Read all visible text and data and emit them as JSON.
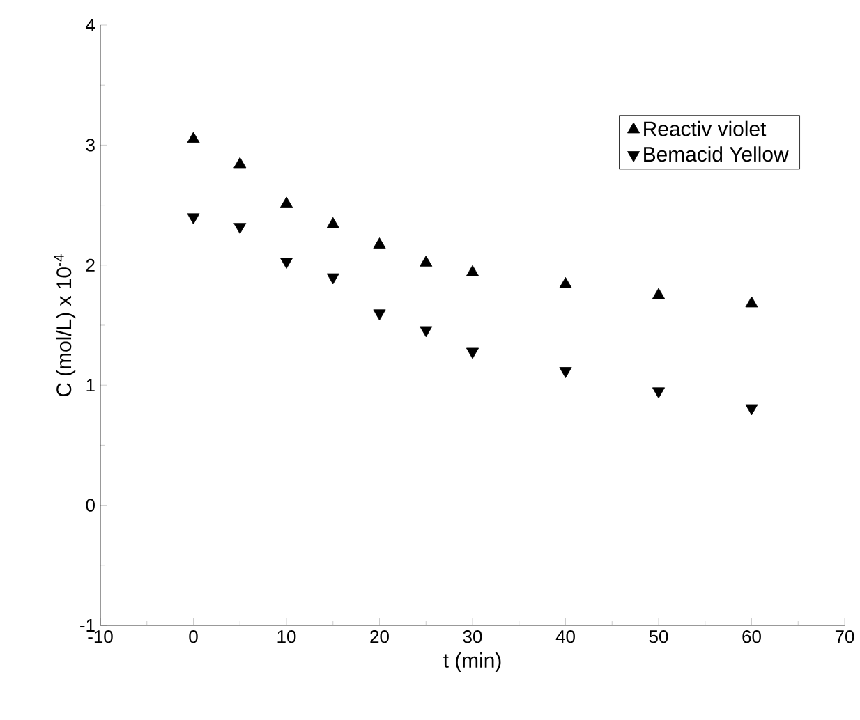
{
  "chart_data": {
    "type": "scatter",
    "xlabel": "t (min)",
    "ylabel": "C (mol/L) x 10$^{-4}$",
    "xlim": [
      -10,
      70
    ],
    "xticks": [
      -10,
      0,
      10,
      20,
      30,
      40,
      50,
      60,
      70
    ],
    "ylim": [
      -1,
      4
    ],
    "yticks": [
      -1,
      0,
      1,
      2,
      3,
      4
    ],
    "x": [
      0,
      5,
      10,
      15,
      20,
      25,
      30,
      40,
      50,
      60
    ],
    "legend": "top right",
    "grid": false,
    "series": [
      {
        "name": "Reactiv violet",
        "color": "#000000",
        "marker": "triangle",
        "values": [
          3.05,
          2.84,
          2.51,
          2.34,
          2.17,
          2.02,
          1.94,
          1.84,
          1.75,
          1.68
        ]
      },
      {
        "name": "Bemacid Yellow",
        "color": "#000000",
        "marker": "triangle-down",
        "values": [
          2.4,
          2.32,
          2.03,
          1.9,
          1.6,
          1.46,
          1.28,
          1.12,
          0.95,
          0.81
        ]
      }
    ]
  }
}
